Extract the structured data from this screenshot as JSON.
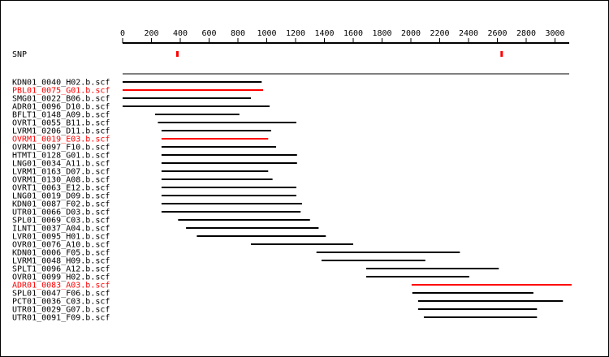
{
  "snp_label": "SNP",
  "colors": {
    "normal": "#000000",
    "highlight": "#ff0000",
    "snp": "#ff0000"
  },
  "chart_data": {
    "type": "alignment",
    "axis": {
      "min": 0,
      "max": 3100,
      "ticks": [
        0,
        200,
        400,
        600,
        800,
        1000,
        1200,
        1400,
        1600,
        1800,
        2000,
        2200,
        2400,
        2600,
        2800,
        3000
      ]
    },
    "snps": [
      380,
      2630
    ],
    "reads": [
      {
        "name": "KDN01_0040_H02.b.scf",
        "start": 0,
        "end": 965,
        "highlight": false
      },
      {
        "name": "PBL01_0075_G01.b.scf",
        "start": 0,
        "end": 975,
        "highlight": true
      },
      {
        "name": "SMG01_0022_B06.b.scf",
        "start": 0,
        "end": 890,
        "highlight": false
      },
      {
        "name": "ADR01_0096_D10.b.scf",
        "start": 0,
        "end": 1020,
        "highlight": false
      },
      {
        "name": "BFLT1_0148_A09.b.scf",
        "start": 225,
        "end": 810,
        "highlight": false
      },
      {
        "name": "OVRT1_0055_B11.b.scf",
        "start": 245,
        "end": 1205,
        "highlight": false
      },
      {
        "name": "LVRM1_0206_D11.b.scf",
        "start": 270,
        "end": 1030,
        "highlight": false
      },
      {
        "name": "OVRM1_0019_E03.b.scf",
        "start": 270,
        "end": 1010,
        "highlight": true
      },
      {
        "name": "OVRM1_0097_F10.b.scf",
        "start": 270,
        "end": 1065,
        "highlight": false
      },
      {
        "name": "HTMT1_0128_G01.b.scf",
        "start": 270,
        "end": 1210,
        "highlight": false
      },
      {
        "name": "LNG01_0034_A11.b.scf",
        "start": 270,
        "end": 1210,
        "highlight": false
      },
      {
        "name": "LVRM1_0163_D07.b.scf",
        "start": 270,
        "end": 1010,
        "highlight": false
      },
      {
        "name": "OVRM1_0130_A08.b.scf",
        "start": 270,
        "end": 1040,
        "highlight": false
      },
      {
        "name": "OVRT1_0063_E12.b.scf",
        "start": 270,
        "end": 1205,
        "highlight": false
      },
      {
        "name": "LNG01_0019_D09.b.scf",
        "start": 270,
        "end": 1205,
        "highlight": false
      },
      {
        "name": "KDN01_0087_F02.b.scf",
        "start": 270,
        "end": 1245,
        "highlight": false
      },
      {
        "name": "UTR01_0066_D03.b.scf",
        "start": 270,
        "end": 1235,
        "highlight": false
      },
      {
        "name": "SPL01_0069_C03.b.scf",
        "start": 385,
        "end": 1300,
        "highlight": false
      },
      {
        "name": "ILNT1_0037_A04.b.scf",
        "start": 440,
        "end": 1360,
        "highlight": false
      },
      {
        "name": "LVR01_0095_H01.b.scf",
        "start": 515,
        "end": 1410,
        "highlight": false
      },
      {
        "name": "OVR01_0076_A10.b.scf",
        "start": 890,
        "end": 1600,
        "highlight": false
      },
      {
        "name": "KDN01_0006_F05.b.scf",
        "start": 1345,
        "end": 2340,
        "highlight": false
      },
      {
        "name": "LVRM1_0048_H09.b.scf",
        "start": 1380,
        "end": 2100,
        "highlight": false
      },
      {
        "name": "SPLT1_0096_A12.b.scf",
        "start": 1690,
        "end": 2610,
        "highlight": false
      },
      {
        "name": "OVR01_0099_H02.b.scf",
        "start": 1690,
        "end": 2405,
        "highlight": false
      },
      {
        "name": "ADR01_0083_A03.b.scf",
        "start": 2005,
        "end": 3115,
        "highlight": true
      },
      {
        "name": "SPL01_0047_F06.b.scf",
        "start": 2010,
        "end": 2850,
        "highlight": false
      },
      {
        "name": "PCT01_0036_C03.b.scf",
        "start": 2050,
        "end": 3055,
        "highlight": false
      },
      {
        "name": "UTR01_0029_G07.b.scf",
        "start": 2050,
        "end": 2875,
        "highlight": false
      },
      {
        "name": "UTR01_0091_F09.b.scf",
        "start": 2090,
        "end": 2875,
        "highlight": false
      }
    ]
  }
}
